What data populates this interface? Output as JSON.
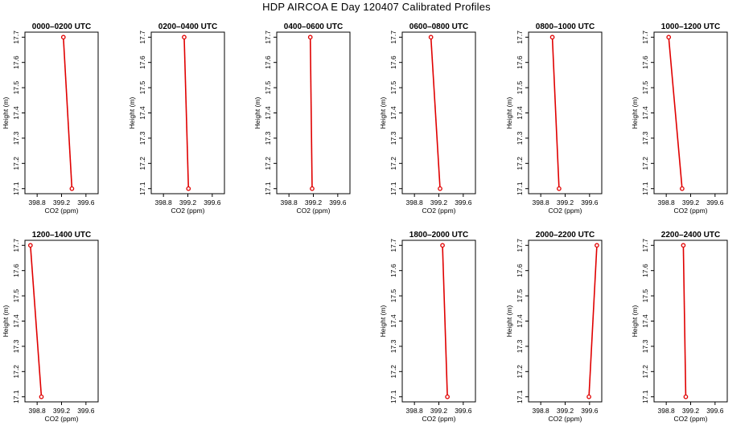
{
  "title": "HDP AIRCOA E  Day 120407  Calibrated Profiles",
  "colors": {
    "line": "#e00000",
    "axis": "#000000"
  },
  "chart_data": [
    {
      "type": "line",
      "title": "0000–0200 UTC",
      "xlabel": "CO2 (ppm)",
      "ylabel": "Height (m)",
      "xlim": [
        398.6,
        399.8
      ],
      "ylim": [
        17.08,
        17.72
      ],
      "xticks": [
        "398.8",
        "399.2",
        "399.6"
      ],
      "yticks": [
        "17.1",
        "17.2",
        "17.3",
        "17.4",
        "17.5",
        "17.6",
        "17.7"
      ],
      "x": [
        399.23,
        399.37
      ],
      "y": [
        17.7,
        17.1
      ]
    },
    {
      "type": "line",
      "title": "0200–0400 UTC",
      "xlabel": "CO2 (ppm)",
      "ylabel": "Height (m)",
      "xlim": [
        398.6,
        399.8
      ],
      "ylim": [
        17.08,
        17.72
      ],
      "xticks": [
        "398.8",
        "399.2",
        "399.6"
      ],
      "yticks": [
        "17.1",
        "17.2",
        "17.3",
        "17.4",
        "17.5",
        "17.6",
        "17.7"
      ],
      "x": [
        399.14,
        399.21
      ],
      "y": [
        17.7,
        17.1
      ]
    },
    {
      "type": "line",
      "title": "0400–0600 UTC",
      "xlabel": "CO2 (ppm)",
      "ylabel": "Height (m)",
      "xlim": [
        398.6,
        399.8
      ],
      "ylim": [
        17.08,
        17.72
      ],
      "xticks": [
        "398.8",
        "399.2",
        "399.6"
      ],
      "yticks": [
        "17.1",
        "17.2",
        "17.3",
        "17.4",
        "17.5",
        "17.6",
        "17.7"
      ],
      "x": [
        399.15,
        399.18
      ],
      "y": [
        17.7,
        17.1
      ]
    },
    {
      "type": "line",
      "title": "0600–0800 UTC",
      "xlabel": "CO2 (ppm)",
      "ylabel": "Height (m)",
      "xlim": [
        398.6,
        399.8
      ],
      "ylim": [
        17.08,
        17.72
      ],
      "xticks": [
        "398.8",
        "399.2",
        "399.6"
      ],
      "yticks": [
        "17.1",
        "17.2",
        "17.3",
        "17.4",
        "17.5",
        "17.6",
        "17.7"
      ],
      "x": [
        399.07,
        399.22
      ],
      "y": [
        17.7,
        17.1
      ]
    },
    {
      "type": "line",
      "title": "0800–1000 UTC",
      "xlabel": "CO2 (ppm)",
      "ylabel": "Height (m)",
      "xlim": [
        398.6,
        399.8
      ],
      "ylim": [
        17.08,
        17.72
      ],
      "xticks": [
        "398.8",
        "399.2",
        "399.6"
      ],
      "yticks": [
        "17.1",
        "17.2",
        "17.3",
        "17.4",
        "17.5",
        "17.6",
        "17.7"
      ],
      "x": [
        398.99,
        399.1
      ],
      "y": [
        17.7,
        17.1
      ]
    },
    {
      "type": "line",
      "title": "1000–1200 UTC",
      "xlabel": "CO2 (ppm)",
      "ylabel": "Height (m)",
      "xlim": [
        398.6,
        399.8
      ],
      "ylim": [
        17.08,
        17.72
      ],
      "xticks": [
        "398.8",
        "399.2",
        "399.6"
      ],
      "yticks": [
        "17.1",
        "17.2",
        "17.3",
        "17.4",
        "17.5",
        "17.6",
        "17.7"
      ],
      "x": [
        398.84,
        399.06
      ],
      "y": [
        17.7,
        17.1
      ]
    },
    {
      "type": "line",
      "title": "1200–1400 UTC",
      "xlabel": "CO2 (ppm)",
      "ylabel": "Height (m)",
      "xlim": [
        398.6,
        399.8
      ],
      "ylim": [
        17.08,
        17.72
      ],
      "xticks": [
        "398.8",
        "399.2",
        "399.6"
      ],
      "yticks": [
        "17.1",
        "17.2",
        "17.3",
        "17.4",
        "17.5",
        "17.6",
        "17.7"
      ],
      "x": [
        398.69,
        398.87
      ],
      "y": [
        17.7,
        17.1
      ]
    },
    {
      "type": "line",
      "title": "1800–2000 UTC",
      "xlabel": "CO2 (ppm)",
      "ylabel": "Height (m)",
      "xlim": [
        398.6,
        399.8
      ],
      "ylim": [
        17.08,
        17.72
      ],
      "xticks": [
        "398.8",
        "399.2",
        "399.6"
      ],
      "yticks": [
        "17.1",
        "17.2",
        "17.3",
        "17.4",
        "17.5",
        "17.6",
        "17.7"
      ],
      "x": [
        399.26,
        399.34
      ],
      "y": [
        17.7,
        17.1
      ]
    },
    {
      "type": "line",
      "title": "2000–2200 UTC",
      "xlabel": "CO2 (ppm)",
      "ylabel": "Height (m)",
      "xlim": [
        398.6,
        399.8
      ],
      "ylim": [
        17.08,
        17.72
      ],
      "xticks": [
        "398.8",
        "399.2",
        "399.6"
      ],
      "yticks": [
        "17.1",
        "17.2",
        "17.3",
        "17.4",
        "17.5",
        "17.6",
        "17.7"
      ],
      "x": [
        399.72,
        399.59
      ],
      "y": [
        17.7,
        17.1
      ]
    },
    {
      "type": "line",
      "title": "2200–2400 UTC",
      "xlabel": "CO2 (ppm)",
      "ylabel": "Height (m)",
      "xlim": [
        398.6,
        399.8
      ],
      "ylim": [
        17.08,
        17.72
      ],
      "xticks": [
        "398.8",
        "399.2",
        "399.6"
      ],
      "yticks": [
        "17.1",
        "17.2",
        "17.3",
        "17.4",
        "17.5",
        "17.6",
        "17.7"
      ],
      "x": [
        399.08,
        399.12
      ],
      "y": [
        17.7,
        17.1
      ]
    }
  ]
}
